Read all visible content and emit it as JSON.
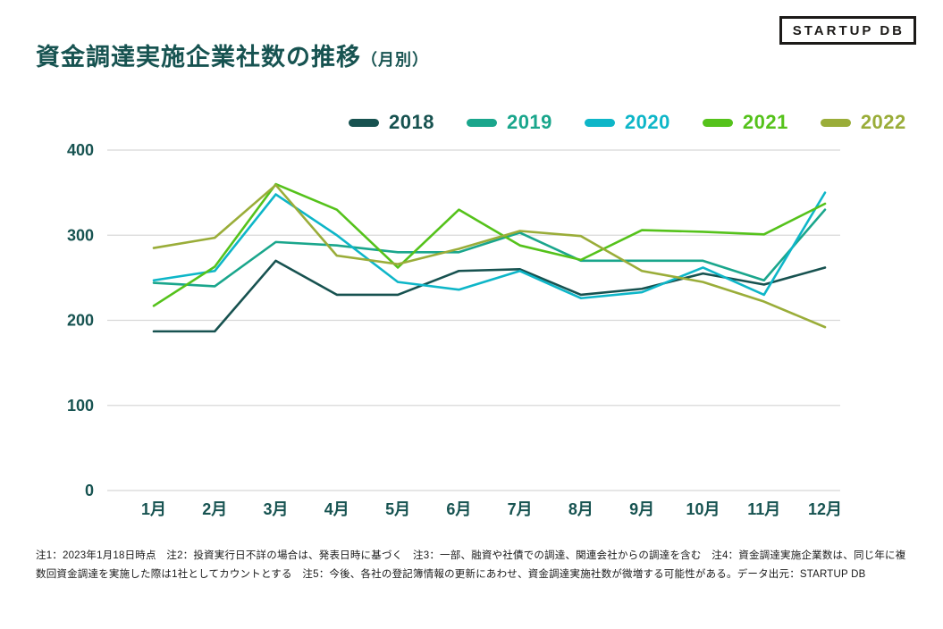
{
  "header": {
    "title": "資金調達実施企業社数の推移",
    "title_suffix": "（月別）",
    "logo_text": "STARTUP DB"
  },
  "colors": {
    "title": "#175351",
    "axis_label": "#175351",
    "gridline": "#d8d8d8"
  },
  "chart_data": {
    "type": "line",
    "title": "資金調達実施企業社数の推移（月別）",
    "categories": [
      "1月",
      "2月",
      "3月",
      "4月",
      "5月",
      "6月",
      "7月",
      "8月",
      "9月",
      "10月",
      "11月",
      "12月"
    ],
    "series": [
      {
        "name": "2018",
        "color": "#175250",
        "values": [
          187,
          187,
          270,
          230,
          230,
          258,
          260,
          230,
          237,
          255,
          242,
          262
        ]
      },
      {
        "name": "2019",
        "color": "#1aa68c",
        "values": [
          244,
          240,
          292,
          288,
          280,
          280,
          303,
          270,
          270,
          270,
          247,
          330
        ]
      },
      {
        "name": "2020",
        "color": "#0eb6c8",
        "values": [
          247,
          258,
          348,
          300,
          245,
          236,
          258,
          226,
          233,
          262,
          230,
          350
        ]
      },
      {
        "name": "2021",
        "color": "#55c21b",
        "values": [
          217,
          263,
          360,
          330,
          262,
          330,
          288,
          271,
          306,
          304,
          301,
          337
        ]
      },
      {
        "name": "2022",
        "color": "#9aad39",
        "values": [
          285,
          297,
          359,
          276,
          266,
          284,
          305,
          299,
          258,
          245,
          222,
          192
        ]
      }
    ],
    "ylim": [
      0,
      400
    ],
    "yticks": [
      0,
      100,
      200,
      300,
      400
    ],
    "grid": "horizontal",
    "legend_position": "top"
  },
  "footnote": {
    "text": "注1：2023年1月18日時点　注2：投資実行日不詳の場合は、発表日時に基づく　注3：一部、融資や社債での調達、関連会社からの調達を含む　注4：資金調達実施企業数は、同じ年に複数回資金調達を実施した際は1社としてカウントとする　注5：今後、各社の登記簿情報の更新にあわせ、資金調達実施社数が微増する可能性がある。データ出元：STARTUP DB"
  }
}
